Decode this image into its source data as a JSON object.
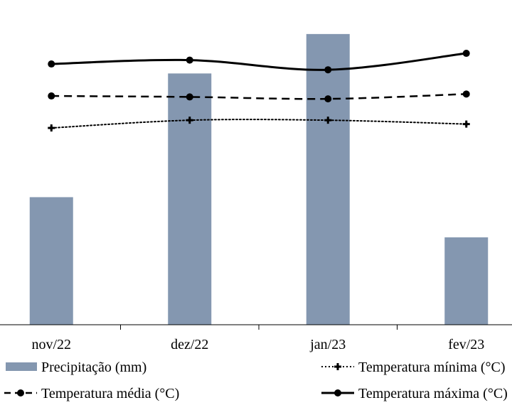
{
  "chart_data": {
    "type": "bar+line",
    "categories": [
      "nov/22",
      "dez/22",
      "jan/23",
      "fev/23"
    ],
    "bar_series": {
      "name": "Precipitação (mm)",
      "values": [
        165,
        325,
        376,
        113
      ],
      "color": "#8497b0",
      "ylim": [
        0,
        420
      ]
    },
    "line_series": [
      {
        "name": "Temperatura mínima (°C)",
        "values": [
          20.3,
          21.1,
          21.1,
          20.7
        ],
        "style": "dotted",
        "marker": "plus",
        "color": "#000000"
      },
      {
        "name": "Temperatura média (°C)",
        "values": [
          23.6,
          23.5,
          23.3,
          23.8
        ],
        "style": "dashed",
        "marker": "circle",
        "color": "#000000"
      },
      {
        "name": "Temperatura máxima (°C)",
        "values": [
          26.9,
          27.3,
          26.3,
          28.0
        ],
        "style": "solid",
        "marker": "circle",
        "color": "#000000"
      }
    ],
    "y2lim": [
      0,
      33.5
    ],
    "legend_position": "bottom",
    "grid": false
  }
}
